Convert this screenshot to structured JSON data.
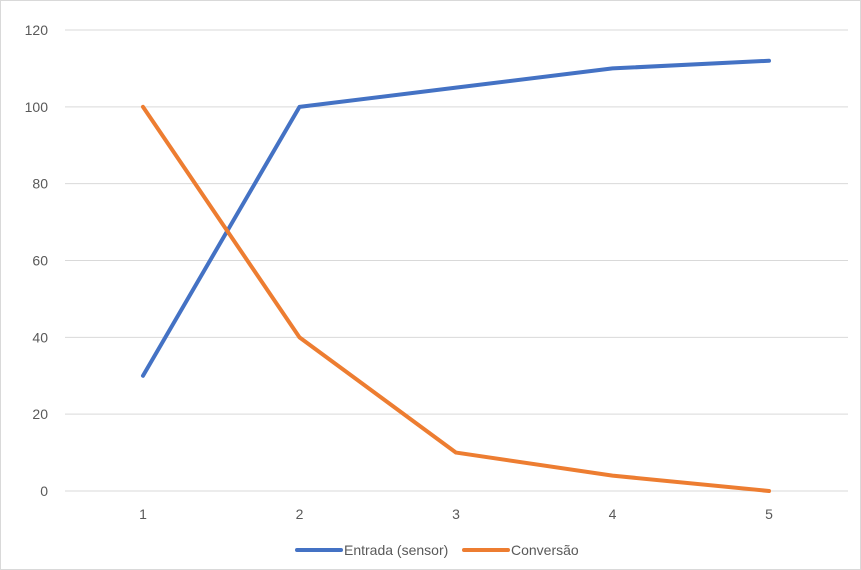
{
  "chart_data": {
    "type": "line",
    "title": "",
    "xlabel": "",
    "ylabel": "",
    "categories": [
      "1",
      "2",
      "3",
      "4",
      "5"
    ],
    "x": [
      1,
      2,
      3,
      4,
      5
    ],
    "ylim": [
      0,
      120
    ],
    "yticks": [
      0,
      20,
      40,
      60,
      80,
      100,
      120
    ],
    "xticks": [
      "1",
      "2",
      "3",
      "4",
      "5"
    ],
    "grid": true,
    "legend_position": "bottom",
    "series": [
      {
        "name": "Entrada (sensor)",
        "color": "#4472c4",
        "values": [
          30,
          100,
          105,
          110,
          112
        ]
      },
      {
        "name": "Conversão",
        "color": "#ed7d31",
        "values": [
          100,
          40,
          10,
          4,
          0
        ]
      }
    ]
  }
}
